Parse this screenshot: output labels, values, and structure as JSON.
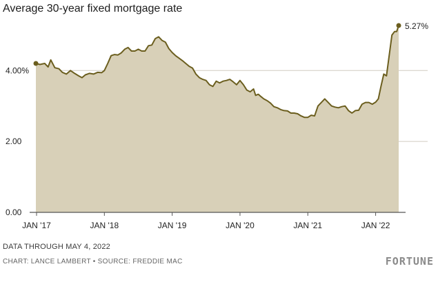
{
  "chart_data": {
    "type": "area",
    "title": "Average 30-year fixed mortgage rate",
    "xlabel": "",
    "ylabel": "",
    "ylim": [
      0,
      5.6
    ],
    "yticks": [
      {
        "value": 0,
        "label": "0.00"
      },
      {
        "value": 2,
        "label": "2.00"
      },
      {
        "value": 4,
        "label": "4.00%"
      }
    ],
    "xticks": [
      {
        "value": 2017.0,
        "label": "JAN '17"
      },
      {
        "value": 2018.0,
        "label": "JAN '18"
      },
      {
        "value": 2019.0,
        "label": "JAN '19"
      },
      {
        "value": 2020.0,
        "label": "JAN '20"
      },
      {
        "value": 2021.0,
        "label": "JAN '21"
      },
      {
        "value": 2022.0,
        "label": "JAN '22"
      }
    ],
    "xlim": [
      2017.0,
      2022.34
    ],
    "grid": true,
    "colors": {
      "area": "#d8d0b8",
      "line": "#6b5e1e",
      "grid": "#d0ccc0",
      "axis": "#555555"
    },
    "end_label": "5.27%",
    "series": [
      {
        "x": [
          2016.99,
          2017.05,
          2017.12,
          2017.17,
          2017.21,
          2017.27,
          2017.33,
          2017.38,
          2017.44,
          2017.5,
          2017.56,
          2017.62,
          2017.67,
          2017.72,
          2017.78,
          2017.84,
          2017.9,
          2017.96,
          2018.0,
          2018.05,
          2018.1,
          2018.15,
          2018.2,
          2018.25,
          2018.3,
          2018.35,
          2018.4,
          2018.45,
          2018.5,
          2018.55,
          2018.6,
          2018.65,
          2018.7,
          2018.75,
          2018.8,
          2018.85,
          2018.9,
          2018.95,
          2019.0,
          2019.05,
          2019.1,
          2019.15,
          2019.2,
          2019.25,
          2019.3,
          2019.35,
          2019.4,
          2019.45,
          2019.5,
          2019.55,
          2019.6,
          2019.65,
          2019.7,
          2019.75,
          2019.8,
          2019.85,
          2019.9,
          2019.95,
          2020.0,
          2020.05,
          2020.1,
          2020.15,
          2020.2,
          2020.23,
          2020.27,
          2020.3,
          2020.35,
          2020.4,
          2020.45,
          2020.5,
          2020.55,
          2020.6,
          2020.65,
          2020.7,
          2020.75,
          2020.8,
          2020.85,
          2020.9,
          2020.95,
          2021.0,
          2021.05,
          2021.1,
          2021.15,
          2021.2,
          2021.25,
          2021.3,
          2021.35,
          2021.4,
          2021.45,
          2021.5,
          2021.55,
          2021.6,
          2021.65,
          2021.7,
          2021.75,
          2021.8,
          2021.85,
          2021.9,
          2021.95,
          2022.0,
          2022.04,
          2022.08,
          2022.12,
          2022.16,
          2022.2,
          2022.24,
          2022.28,
          2022.31,
          2022.34
        ],
        "y": [
          4.2,
          4.17,
          4.2,
          4.1,
          4.3,
          4.08,
          4.05,
          3.95,
          3.9,
          4.0,
          3.92,
          3.85,
          3.8,
          3.88,
          3.92,
          3.9,
          3.95,
          3.94,
          4.0,
          4.2,
          4.42,
          4.45,
          4.44,
          4.5,
          4.6,
          4.65,
          4.55,
          4.55,
          4.6,
          4.55,
          4.55,
          4.7,
          4.72,
          4.9,
          4.95,
          4.85,
          4.8,
          4.62,
          4.51,
          4.42,
          4.35,
          4.28,
          4.2,
          4.12,
          4.07,
          3.9,
          3.8,
          3.75,
          3.72,
          3.6,
          3.55,
          3.7,
          3.65,
          3.7,
          3.72,
          3.75,
          3.68,
          3.6,
          3.72,
          3.6,
          3.45,
          3.4,
          3.48,
          3.3,
          3.33,
          3.28,
          3.2,
          3.15,
          3.08,
          2.98,
          2.95,
          2.9,
          2.87,
          2.86,
          2.8,
          2.8,
          2.78,
          2.72,
          2.68,
          2.68,
          2.74,
          2.72,
          3.0,
          3.1,
          3.2,
          3.1,
          3.0,
          2.97,
          2.95,
          2.98,
          3.0,
          2.87,
          2.8,
          2.87,
          2.88,
          3.05,
          3.1,
          3.1,
          3.05,
          3.11,
          3.2,
          3.56,
          3.9,
          3.85,
          4.42,
          5.0,
          5.1,
          5.1,
          5.27
        ]
      }
    ],
    "notes": [
      "DATA THROUGH MAY 4, 2022",
      "CHART: LANCE LAMBERT • SOURCE: FREDDIE MAC"
    ],
    "brand": "FORTUNE"
  }
}
